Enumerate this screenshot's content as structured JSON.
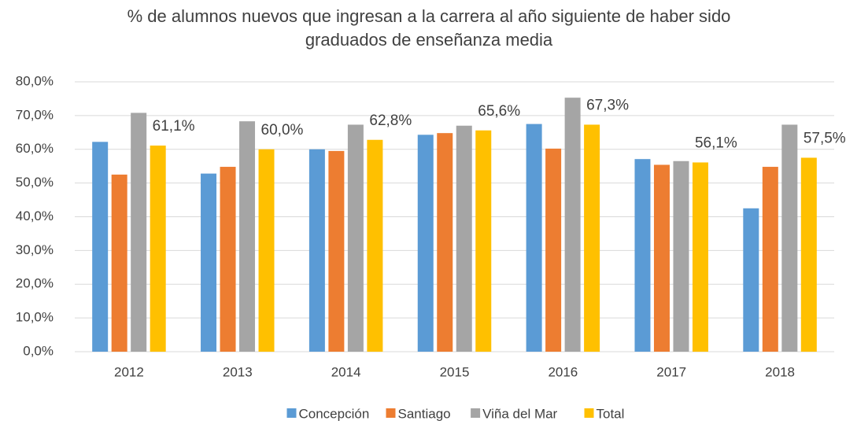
{
  "chart_data": {
    "type": "bar",
    "title": [
      "% de alumnos nuevos que ingresan a la carrera al año siguiente de haber sido",
      "graduados de enseñanza media"
    ],
    "categories": [
      "2012",
      "2013",
      "2014",
      "2015",
      "2016",
      "2017",
      "2018"
    ],
    "series": [
      {
        "name": "Concepción",
        "color": "#5b9bd5",
        "values": [
          62.2,
          52.8,
          60.0,
          64.3,
          67.5,
          57.1,
          42.5
        ]
      },
      {
        "name": "Santiago",
        "color": "#ed7d31",
        "values": [
          52.5,
          54.8,
          59.5,
          64.8,
          60.2,
          55.4,
          54.8
        ]
      },
      {
        "name": "Viña del Mar",
        "color": "#a5a5a5",
        "values": [
          70.8,
          68.3,
          67.3,
          67.0,
          75.3,
          56.5,
          67.3
        ]
      },
      {
        "name": "Total",
        "color": "#ffc000",
        "values": [
          61.1,
          60.0,
          62.8,
          65.6,
          67.3,
          56.1,
          57.5
        ],
        "value_labels": [
          "61,1%",
          "60,0%",
          "62,8%",
          "65,6%",
          "67,3%",
          "56,1%",
          "57,5%"
        ]
      }
    ],
    "ylim": [
      0,
      80
    ],
    "yticks": [
      {
        "value": 0,
        "label": "0,0%"
      },
      {
        "value": 10,
        "label": "10,0%"
      },
      {
        "value": 20,
        "label": "20,0%"
      },
      {
        "value": 30,
        "label": "30,0%"
      },
      {
        "value": 40,
        "label": "40,0%"
      },
      {
        "value": 50,
        "label": "50,0%"
      },
      {
        "value": 60,
        "label": "60,0%"
      },
      {
        "value": 70,
        "label": "70,0%"
      },
      {
        "value": 80,
        "label": "80,0%"
      }
    ],
    "grid": true,
    "legend": "bottom"
  }
}
